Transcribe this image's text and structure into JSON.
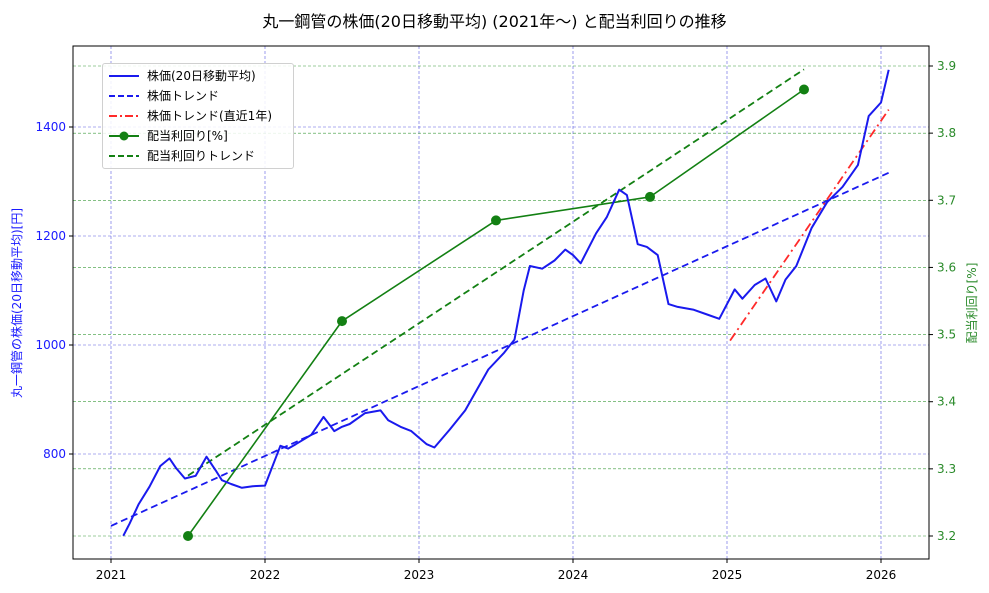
{
  "title": "丸一鋼管の株価(20日移動平均) (2021年〜) と配当利回りの推移",
  "axes": {
    "x_ticks": [
      "2021",
      "2022",
      "2023",
      "2024",
      "2025",
      "2026"
    ],
    "left_ticks": [
      "800",
      "1000",
      "1200",
      "1400"
    ],
    "right_ticks": [
      "3.2",
      "3.3",
      "3.4",
      "3.5",
      "3.6",
      "3.7",
      "3.8",
      "3.9"
    ],
    "left_label": "丸一鋼管の株価(20日移動平均)[円]",
    "right_label": "配当利回り[%]"
  },
  "legend": {
    "items": [
      {
        "label": "株価(20日移動平均)",
        "style": "solid",
        "color": "#1a1aee"
      },
      {
        "label": "株価トレンド",
        "style": "dashed",
        "color": "#1a1aee"
      },
      {
        "label": "株価トレンド(直近1年)",
        "style": "dashdot",
        "color": "#ff2a2a"
      },
      {
        "label": "配当利回り[%]",
        "style": "solid-marker",
        "color": "#138013"
      },
      {
        "label": "配当利回りトレンド",
        "style": "dashed",
        "color": "#138013"
      }
    ]
  },
  "colors": {
    "price": "#1a1aee",
    "price_trend": "#1a1aee",
    "recent_trend": "#ff2a2a",
    "yield": "#138013",
    "yield_trend": "#138013",
    "grid_blue": "#5a5ae0",
    "grid_green": "#3a9a3a"
  },
  "chart_data": {
    "type": "line",
    "title": "丸一鋼管の株価(20日移動平均) (2021年〜) と配当利回りの推移",
    "xlabel": "",
    "ylabel_left": "丸一鋼管の株価(20日移動平均)[円]",
    "ylabel_right": "配当利回り[%]",
    "xlim": [
      2020.75,
      2026.32
    ],
    "ylim_left": [
      625,
      1565
    ],
    "ylim_right": [
      3.165,
      3.93
    ],
    "grid": true,
    "legend_position": "upper left",
    "series": [
      {
        "name": "株価(20日移動平均)",
        "axis": "left",
        "style": "solid",
        "x": [
          2021.08,
          2021.12,
          2021.18,
          2021.25,
          2021.32,
          2021.38,
          2021.42,
          2021.48,
          2021.55,
          2021.62,
          2021.68,
          2021.72,
          2021.78,
          2021.85,
          2021.92,
          2022.0,
          2022.1,
          2022.15,
          2022.2,
          2022.3,
          2022.38,
          2022.45,
          2022.5,
          2022.55,
          2022.65,
          2022.75,
          2022.8,
          2022.88,
          2022.95,
          2023.05,
          2023.1,
          2023.2,
          2023.3,
          2023.35,
          2023.45,
          2023.55,
          2023.62,
          2023.68,
          2023.72,
          2023.8,
          2023.88,
          2023.95,
          2024.0,
          2024.05,
          2024.15,
          2024.22,
          2024.3,
          2024.35,
          2024.42,
          2024.48,
          2024.55,
          2024.62,
          2024.68,
          2024.78,
          2024.88,
          2024.95,
          2025.05,
          2025.1,
          2025.18,
          2025.25,
          2025.32,
          2025.38,
          2025.45,
          2025.55,
          2025.65,
          2025.75,
          2025.85,
          2025.92,
          2026.0,
          2026.05
        ],
        "values": [
          650,
          672,
          708,
          740,
          778,
          792,
          775,
          755,
          760,
          795,
          770,
          752,
          745,
          738,
          741,
          742,
          815,
          810,
          818,
          835,
          868,
          842,
          850,
          855,
          875,
          880,
          862,
          850,
          842,
          818,
          812,
          845,
          880,
          905,
          955,
          985,
          1010,
          1100,
          1145,
          1140,
          1155,
          1175,
          1165,
          1150,
          1205,
          1235,
          1285,
          1275,
          1185,
          1180,
          1165,
          1075,
          1070,
          1065,
          1055,
          1048,
          1102,
          1085,
          1110,
          1122,
          1080,
          1120,
          1145,
          1215,
          1262,
          1290,
          1330,
          1420,
          1445,
          1505
        ]
      },
      {
        "name": "株価トレンド",
        "axis": "left",
        "style": "dashed",
        "x": [
          2021.0,
          2026.05
        ],
        "values": [
          668,
          1316
        ]
      },
      {
        "name": "株価トレンド(直近1年)",
        "axis": "left",
        "style": "dashdot",
        "x": [
          2025.02,
          2026.05
        ],
        "values": [
          1008,
          1432
        ]
      },
      {
        "name": "配当利回り[%]",
        "axis": "right",
        "style": "solid-marker",
        "x": [
          2021.5,
          2022.5,
          2023.5,
          2024.5,
          2025.5
        ],
        "values": [
          3.2,
          3.52,
          3.67,
          3.705,
          3.865
        ]
      },
      {
        "name": "配当利回りトレンド",
        "axis": "right",
        "style": "dashed",
        "x": [
          2021.5,
          2025.5
        ],
        "values": [
          3.29,
          3.895
        ]
      }
    ]
  }
}
